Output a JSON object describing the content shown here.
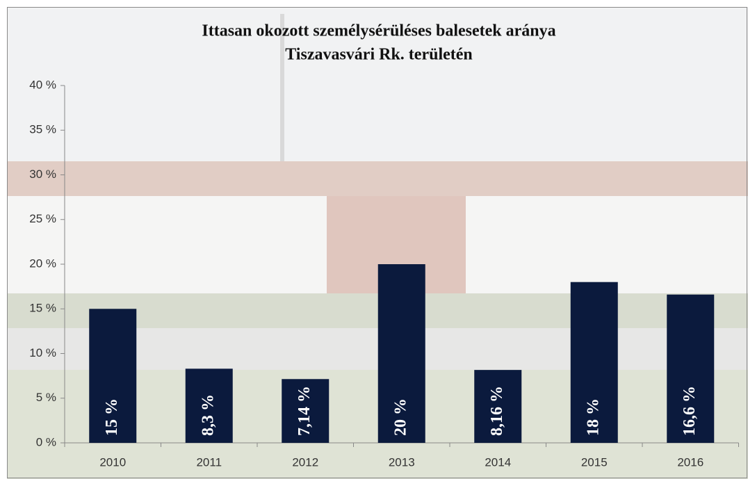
{
  "chart_data": {
    "type": "bar",
    "title": [
      "Ittasan okozott személysérüléses balesetek aránya",
      "Tiszavasvári Rk. területén"
    ],
    "categories": [
      "2010",
      "2011",
      "2012",
      "2013",
      "2014",
      "2015",
      "2016"
    ],
    "values": [
      15,
      8.3,
      7.14,
      20,
      8.16,
      18,
      16.6
    ],
    "value_labels": [
      "15 %",
      "8,3 %",
      "7,14 %",
      "20 %",
      "8,16 %",
      "18 %",
      "16,6 %"
    ],
    "color": "#0b1a3d",
    "ylim": [
      0,
      40
    ],
    "yticks": [
      {
        "value": 0,
        "label": "0 %"
      },
      {
        "value": 5,
        "label": "5 %"
      },
      {
        "value": 10,
        "label": "10 %"
      },
      {
        "value": 15,
        "label": "15 %"
      },
      {
        "value": 20,
        "label": "20 %"
      },
      {
        "value": 25,
        "label": "25 %"
      },
      {
        "value": 30,
        "label": "30 %"
      },
      {
        "value": 35,
        "label": "35 %"
      },
      {
        "value": 40,
        "label": "40 %"
      }
    ],
    "grid": false
  }
}
